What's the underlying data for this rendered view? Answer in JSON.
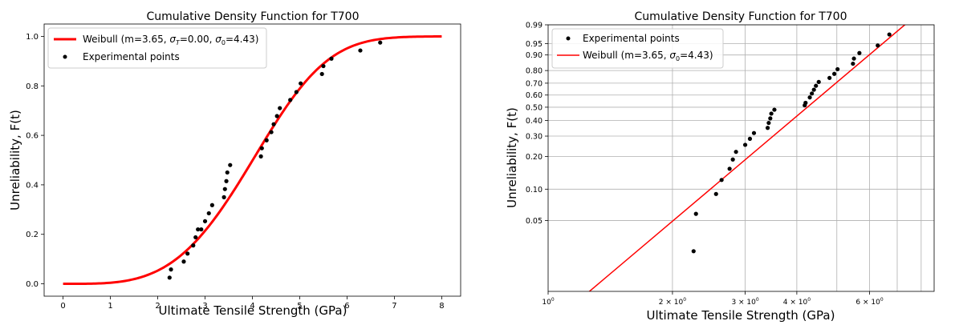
{
  "chart_data": [
    {
      "type": "line",
      "title": "Cumulative Density Function for T700",
      "xlabel": "Ultimate Tensile Strength (GPa)",
      "ylabel": "Unreliability, F(t)",
      "xlim": [
        -0.4,
        8.4
      ],
      "ylim": [
        -0.05,
        1.05
      ],
      "x_ticks": [
        0,
        1,
        2,
        3,
        4,
        5,
        6,
        7,
        8
      ],
      "x_tick_labels": [
        "0",
        "1",
        "2",
        "3",
        "4",
        "5",
        "6",
        "7",
        "8"
      ],
      "y_ticks": [
        0.0,
        0.2,
        0.4,
        0.6,
        0.8,
        1.0
      ],
      "y_tick_labels": [
        "0.0",
        "0.2",
        "0.4",
        "0.6",
        "0.8",
        "1.0"
      ],
      "grid": false,
      "legend_position": "top-left",
      "series": [
        {
          "name": "Weibull (m=3.65, σT=0.00, σ0=4.43)",
          "legend_main": "Weibull (m=3.65, ",
          "legend_parts": [
            {
              "text": "σ",
              "sub": "T"
            },
            {
              "text": "=0.00, "
            },
            {
              "text": "σ",
              "sub": "0"
            },
            {
              "text": "=4.43)"
            }
          ],
          "kind": "curve",
          "color": "#ff0000",
          "weibull": {
            "m": 3.65,
            "sigma_T": 0.0,
            "sigma_0": 4.43
          },
          "x_range": [
            0,
            8
          ]
        },
        {
          "name": "Experimental points",
          "kind": "points",
          "color": "#000000",
          "x": [
            2.25,
            2.28,
            2.55,
            2.63,
            2.75,
            2.8,
            2.85,
            2.92,
            3.0,
            3.08,
            3.15,
            3.4,
            3.42,
            3.45,
            3.47,
            3.53,
            4.18,
            4.2,
            4.3,
            4.4,
            4.45,
            4.52,
            4.58,
            4.8,
            4.93,
            5.02,
            5.47,
            5.5,
            5.67,
            6.28,
            6.7
          ],
          "y": [
            0.025,
            0.058,
            0.09,
            0.122,
            0.155,
            0.188,
            0.22,
            0.22,
            0.253,
            0.285,
            0.318,
            0.35,
            0.383,
            0.415,
            0.45,
            0.48,
            0.515,
            0.548,
            0.58,
            0.613,
            0.645,
            0.678,
            0.71,
            0.743,
            0.775,
            0.81,
            0.848,
            0.88,
            0.91,
            0.943,
            0.975
          ]
        }
      ]
    },
    {
      "type": "scatter",
      "title": "Cumulative Density Function for T700",
      "xlabel": "Ultimate Tensile Strength (GPa)",
      "ylabel": "Unreliability, F(t)",
      "xscale": "log",
      "yscale": "weibull-probability",
      "xlim": [
        1.0,
        8.6
      ],
      "ylim": [
        0.01,
        0.99
      ],
      "x_ticks": [
        1,
        2,
        3,
        4,
        6
      ],
      "x_tick_labels": [
        {
          "base": "10",
          "exp": "0"
        },
        {
          "base": "2 × 10",
          "exp": "0"
        },
        {
          "base": "3 × 10",
          "exp": "0"
        },
        {
          "base": "4 × 10",
          "exp": "0"
        },
        {
          "base": "6 × 10",
          "exp": "0"
        }
      ],
      "x_grid": [
        1,
        2,
        3,
        4,
        5,
        6,
        7,
        8
      ],
      "y_ticks": [
        0.05,
        0.1,
        0.2,
        0.3,
        0.4,
        0.5,
        0.6,
        0.7,
        0.8,
        0.9,
        0.95,
        0.99
      ],
      "y_tick_labels": [
        "0.05",
        "0.10",
        "0.20",
        "0.30",
        "0.40",
        "0.50",
        "0.60",
        "0.70",
        "0.80",
        "0.90",
        "0.95",
        "0.99"
      ],
      "grid": true,
      "legend_position": "top-left",
      "series": [
        {
          "name": "Experimental points",
          "kind": "points",
          "color": "#000000",
          "x": [
            2.25,
            2.28,
            2.55,
            2.63,
            2.75,
            2.8,
            2.85,
            3.0,
            3.08,
            3.15,
            3.4,
            3.42,
            3.45,
            3.47,
            3.53,
            4.18,
            4.2,
            4.3,
            4.35,
            4.4,
            4.45,
            4.52,
            4.8,
            4.93,
            5.02,
            5.47,
            5.5,
            5.67,
            6.28,
            6.7
          ],
          "y": [
            0.025,
            0.058,
            0.09,
            0.122,
            0.155,
            0.188,
            0.22,
            0.253,
            0.285,
            0.318,
            0.35,
            0.383,
            0.415,
            0.45,
            0.48,
            0.515,
            0.535,
            0.58,
            0.613,
            0.645,
            0.678,
            0.71,
            0.743,
            0.775,
            0.81,
            0.848,
            0.88,
            0.91,
            0.943,
            0.975
          ]
        },
        {
          "name": "Weibull (m=3.65, σ0=4.43)",
          "legend_main": "Weibull (m=3.65, ",
          "legend_parts": [
            {
              "text": "σ",
              "sub": "0"
            },
            {
              "text": "=4.43)"
            }
          ],
          "kind": "curve",
          "color": "#ff0000",
          "weibull": {
            "m": 3.65,
            "sigma_T": 0.0,
            "sigma_0": 4.43
          }
        }
      ]
    }
  ]
}
